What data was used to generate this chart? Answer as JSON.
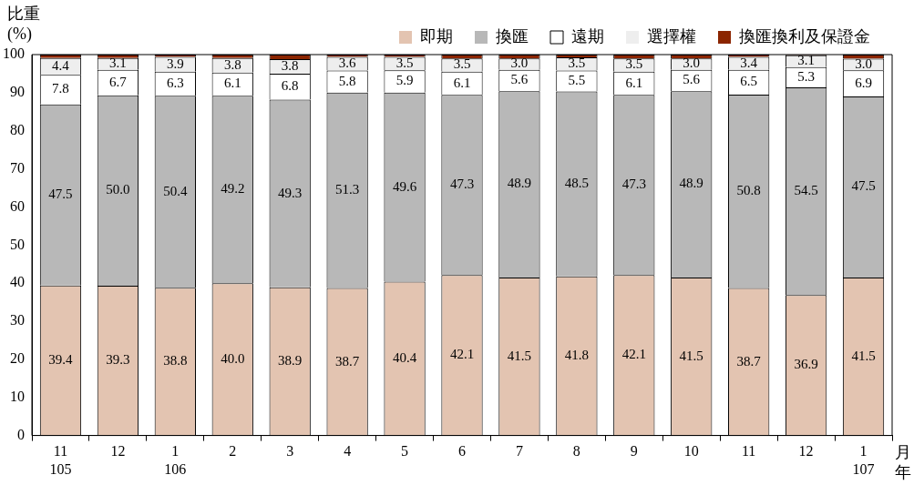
{
  "chart_data": {
    "type": "bar",
    "stacked": true,
    "ylabel": "比重\n(%)",
    "xlabel": "月年",
    "categories": [
      "11\n105",
      "12",
      "1\n106",
      "2",
      "3",
      "4",
      "5",
      "6",
      "7",
      "8",
      "9",
      "10",
      "11",
      "12",
      "1\n107"
    ],
    "ylim": [
      0,
      100
    ],
    "yticks": [
      0,
      10,
      20,
      30,
      40,
      50,
      60,
      70,
      80,
      90,
      100
    ],
    "grid": false,
    "legend": "top right",
    "series": [
      {
        "name": "即期",
        "color": "#e3c4b1",
        "values": [
          39.4,
          39.3,
          38.8,
          40.0,
          38.9,
          38.7,
          40.4,
          42.1,
          41.5,
          41.8,
          42.1,
          41.5,
          38.7,
          36.9,
          41.5
        ],
        "value_labels": [
          "39.4",
          "39.3",
          "38.8",
          "40.0",
          "38.9",
          "38.7",
          "40.4",
          "42.1",
          "41.5",
          "41.8",
          "42.1",
          "41.5",
          "38.7",
          "36.9",
          "41.5"
        ]
      },
      {
        "name": "換匯",
        "color": "#b8b8b8",
        "values": [
          47.5,
          50.0,
          50.4,
          49.2,
          49.3,
          51.3,
          49.6,
          47.3,
          48.9,
          48.5,
          47.3,
          48.9,
          50.8,
          54.5,
          47.5
        ],
        "value_labels": [
          "47.5",
          "50.0",
          "50.4",
          "49.2",
          "49.3",
          "51.3",
          "49.6",
          "47.3",
          "48.9",
          "48.5",
          "47.3",
          "48.9",
          "50.8",
          "54.5",
          "47.5"
        ]
      },
      {
        "name": "遠期",
        "color": "#ffffff",
        "values": [
          7.8,
          6.7,
          6.3,
          6.1,
          6.8,
          5.8,
          5.9,
          6.1,
          5.6,
          5.5,
          6.1,
          5.6,
          6.5,
          5.3,
          6.9
        ],
        "value_labels": [
          "7.8",
          "6.7",
          "6.3",
          "6.1",
          "6.8",
          "5.8",
          "5.9",
          "6.1",
          "5.6",
          "5.5",
          "6.1",
          "5.6",
          "6.5",
          "5.3",
          "6.9"
        ]
      },
      {
        "name": "選擇權",
        "color": "#eeeeee",
        "values": [
          4.4,
          3.1,
          3.9,
          3.8,
          3.8,
          3.6,
          3.5,
          3.5,
          3.0,
          3.5,
          3.5,
          3.0,
          3.4,
          3.1,
          3.0
        ],
        "value_labels": [
          "4.4",
          "3.1",
          "3.9",
          "3.8",
          "3.8",
          "3.6",
          "3.5",
          "3.5",
          "3.0",
          "3.5",
          "3.5",
          "3.0",
          "3.4",
          "3.1",
          "3.0"
        ]
      },
      {
        "name": "換匯換利及保證金",
        "color": "#8b2500",
        "values": [
          0.9,
          0.9,
          0.6,
          0.9,
          1.2,
          0.6,
          0.6,
          1.0,
          1.0,
          0.7,
          1.0,
          1.0,
          0.6,
          0.2,
          1.1
        ]
      }
    ]
  }
}
